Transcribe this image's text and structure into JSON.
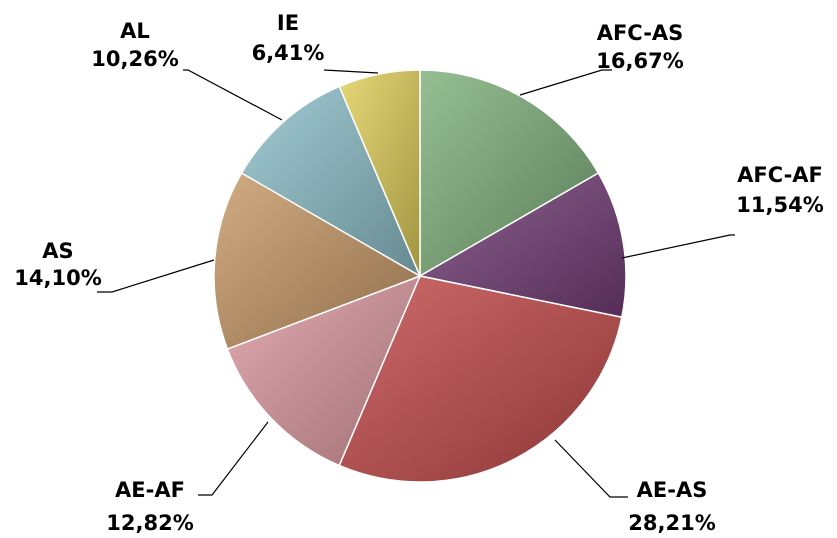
{
  "chart_data": {
    "type": "pie",
    "title": "",
    "slices": [
      {
        "label": "AFC-AS",
        "value": 16.67,
        "value_label": "16,67%",
        "color": "#7fb07b"
      },
      {
        "label": "AFC-AF",
        "value": 11.54,
        "value_label": "11,54%",
        "color": "#743f78"
      },
      {
        "label": "AE-AS",
        "value": 28.21,
        "value_label": "28,21%",
        "color": "#c44b4b"
      },
      {
        "label": "AE-AF",
        "value": 12.82,
        "value_label": "12,82%",
        "color": "#dd9aa1"
      },
      {
        "label": "AS",
        "value": 14.1,
        "value_label": "14,10%",
        "color": "#c89a68"
      },
      {
        "label": "AL",
        "value": 10.26,
        "value_label": "10,26%",
        "color": "#8ebfc9"
      },
      {
        "label": "IE",
        "value": 6.41,
        "value_label": "6,41%",
        "color": "#e0cf5a"
      }
    ],
    "start_angle": "12 o'clock",
    "direction": "clockwise",
    "legend": "none"
  }
}
